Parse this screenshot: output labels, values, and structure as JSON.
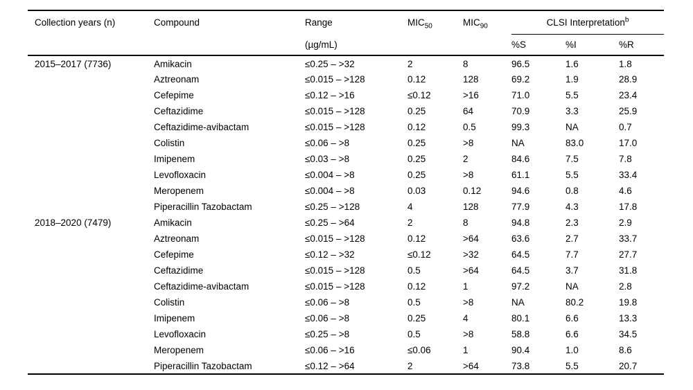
{
  "colors": {
    "background": "#ffffff",
    "text": "#000000",
    "rule": "#000000"
  },
  "table": {
    "headers": {
      "collection_years": "Collection years (n)",
      "compound": "Compound",
      "range": "Range",
      "range_units": "(µg/mL)",
      "mic50_base": "MIC",
      "mic50_sub": "50",
      "mic90_base": "MIC",
      "mic90_sub": "90",
      "clsi_label": "CLSI Interpretation",
      "clsi_sup": "b",
      "pct_s": "%S",
      "pct_i": "%I",
      "pct_r": "%R"
    },
    "groups": [
      {
        "label": "2015–2017 (7736)",
        "rows": [
          {
            "compound": "Amikacin",
            "range": "≤0.25 – >32",
            "mic50": "2",
            "mic90": "8",
            "s": "96.5",
            "i": "1.6",
            "r": "1.8"
          },
          {
            "compound": "Aztreonam",
            "range": "≤0.015 – >128",
            "mic50": "0.12",
            "mic90": "128",
            "s": "69.2",
            "i": "1.9",
            "r": "28.9"
          },
          {
            "compound": "Cefepime",
            "range": "≤0.12 – >16",
            "mic50": "≤0.12",
            "mic90": ">16",
            "s": "71.0",
            "i": "5.5",
            "r": "23.4"
          },
          {
            "compound": "Ceftazidime",
            "range": "≤0.015 – >128",
            "mic50": "0.25",
            "mic90": "64",
            "s": "70.9",
            "i": "3.3",
            "r": "25.9"
          },
          {
            "compound": "Ceftazidime-avibactam",
            "range": "≤0.015 – >128",
            "mic50": "0.12",
            "mic90": "0.5",
            "s": "99.3",
            "i": "NA",
            "r": "0.7"
          },
          {
            "compound": "Colistin",
            "range": "≤0.06 – >8",
            "mic50": "0.25",
            "mic90": ">8",
            "s": "NA",
            "i": "83.0",
            "r": "17.0"
          },
          {
            "compound": "Imipenem",
            "range": "≤0.03 – >8",
            "mic50": "0.25",
            "mic90": "2",
            "s": "84.6",
            "i": "7.5",
            "r": "7.8"
          },
          {
            "compound": "Levofloxacin",
            "range": "≤0.004 – >8",
            "mic50": "0.25",
            "mic90": ">8",
            "s": "61.1",
            "i": "5.5",
            "r": "33.4"
          },
          {
            "compound": "Meropenem",
            "range": "≤0.004 – >8",
            "mic50": "0.03",
            "mic90": "0.12",
            "s": "94.6",
            "i": "0.8",
            "r": "4.6"
          },
          {
            "compound": "Piperacillin Tazobactam",
            "range": "≤0.25 – >128",
            "mic50": "4",
            "mic90": "128",
            "s": "77.9",
            "i": "4.3",
            "r": "17.8"
          }
        ]
      },
      {
        "label": "2018–2020 (7479)",
        "rows": [
          {
            "compound": "Amikacin",
            "range": "≤0.25 – >64",
            "mic50": "2",
            "mic90": "8",
            "s": "94.8",
            "i": "2.3",
            "r": "2.9"
          },
          {
            "compound": "Aztreonam",
            "range": "≤0.015 – >128",
            "mic50": "0.12",
            "mic90": ">64",
            "s": "63.6",
            "i": "2.7",
            "r": "33.7"
          },
          {
            "compound": "Cefepime",
            "range": "≤0.12 – >32",
            "mic50": "≤0.12",
            "mic90": ">32",
            "s": "64.5",
            "i": "7.7",
            "r": "27.7"
          },
          {
            "compound": "Ceftazidime",
            "range": "≤0.015 – >128",
            "mic50": "0.5",
            "mic90": ">64",
            "s": "64.5",
            "i": "3.7",
            "r": "31.8"
          },
          {
            "compound": "Ceftazidime-avibactam",
            "range": "≤0.015 – >128",
            "mic50": "0.12",
            "mic90": "1",
            "s": "97.2",
            "i": "NA",
            "r": "2.8"
          },
          {
            "compound": "Colistin",
            "range": "≤0.06 – >8",
            "mic50": "0.5",
            "mic90": ">8",
            "s": "NA",
            "i": "80.2",
            "r": "19.8"
          },
          {
            "compound": "Imipenem",
            "range": "≤0.06 – >8",
            "mic50": "0.25",
            "mic90": "4",
            "s": "80.1",
            "i": "6.6",
            "r": "13.3"
          },
          {
            "compound": "Levofloxacin",
            "range": "≤0.25 – >8",
            "mic50": "0.5",
            "mic90": ">8",
            "s": "58.8",
            "i": "6.6",
            "r": "34.5"
          },
          {
            "compound": "Meropenem",
            "range": "≤0.06 – >16",
            "mic50": "≤0.06",
            "mic90": "1",
            "s": "90.4",
            "i": "1.0",
            "r": "8.6"
          },
          {
            "compound": "Piperacillin Tazobactam",
            "range": "≤0.12 – >64",
            "mic50": "2",
            "mic90": ">64",
            "s": "73.8",
            "i": "5.5",
            "r": "20.7"
          }
        ]
      }
    ]
  }
}
